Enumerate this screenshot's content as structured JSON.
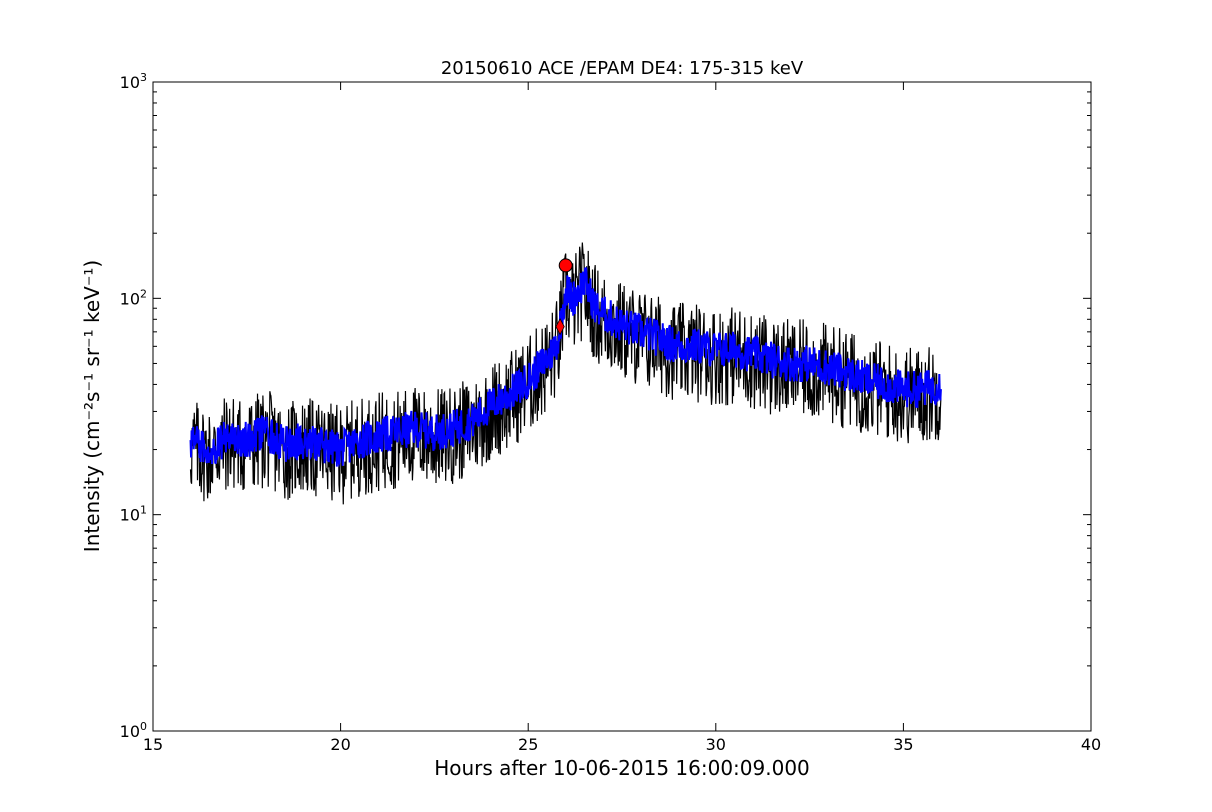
{
  "chart_data": {
    "type": "line",
    "title": "20150610 ACE /EPAM DE4: 175-315 keV",
    "xlabel": "Hours after 10-06-2015 16:00:09.000",
    "ylabel": "Intensity (cm⁻²s⁻¹ sr⁻¹ keV⁻¹)",
    "xlim": [
      15,
      40
    ],
    "ylim": [
      1,
      1000
    ],
    "yscale": "log",
    "grid": false,
    "x_ticks": [
      "15",
      "20",
      "25",
      "30",
      "35",
      "40"
    ],
    "y_ticks": [
      {
        "base": "10",
        "exp": "0"
      },
      {
        "base": "10",
        "exp": "1"
      },
      {
        "base": "10",
        "exp": "2"
      },
      {
        "base": "10",
        "exp": "3"
      }
    ],
    "series": [
      {
        "name": "",
        "role": "raw",
        "color": "#000000",
        "x": [
          16.0,
          16.5,
          17.0,
          17.5,
          18.0,
          18.5,
          19.0,
          19.5,
          20.0,
          20.5,
          21.0,
          21.5,
          22.0,
          22.5,
          23.0,
          23.5,
          24.0,
          24.5,
          25.0,
          25.3,
          25.6,
          25.8,
          26.0,
          26.2,
          26.5,
          26.8,
          27.0,
          27.5,
          28.0,
          28.5,
          29.0,
          29.5,
          30.0,
          30.5,
          31.0,
          31.5,
          32.0,
          32.5,
          33.0,
          33.5,
          34.0,
          34.5,
          35.0,
          35.5,
          36.0
        ],
        "y": [
          22,
          20,
          23,
          22,
          24,
          21,
          22,
          21,
          20,
          22,
          23,
          24,
          25,
          24,
          25,
          27,
          32,
          36,
          42,
          48,
          55,
          65,
          110,
          100,
          120,
          90,
          85,
          75,
          70,
          65,
          60,
          60,
          58,
          58,
          55,
          52,
          50,
          50,
          48,
          45,
          42,
          40,
          38,
          38,
          40
        ],
        "noise_low": 0.55,
        "noise_high": 1.6
      },
      {
        "name": "",
        "role": "smoothed",
        "color": "#0000ff",
        "x": [
          16.0,
          16.5,
          17.0,
          17.5,
          18.0,
          18.5,
          19.0,
          19.5,
          20.0,
          20.5,
          21.0,
          21.5,
          22.0,
          22.5,
          23.0,
          23.5,
          24.0,
          24.5,
          25.0,
          25.3,
          25.6,
          25.8,
          26.0,
          26.2,
          26.5,
          26.8,
          27.0,
          27.5,
          28.0,
          28.5,
          29.0,
          29.5,
          30.0,
          30.5,
          31.0,
          31.5,
          32.0,
          32.5,
          33.0,
          33.5,
          34.0,
          34.5,
          35.0,
          35.5,
          36.0
        ],
        "y": [
          22,
          20,
          23,
          22,
          24,
          21,
          22,
          21,
          20,
          22,
          23,
          24,
          25,
          24,
          25,
          27,
          32,
          36,
          42,
          48,
          55,
          65,
          110,
          100,
          120,
          90,
          85,
          75,
          70,
          65,
          60,
          60,
          58,
          58,
          55,
          52,
          50,
          50,
          48,
          45,
          42,
          40,
          38,
          38,
          40
        ],
        "noise_low": 0.82,
        "noise_high": 1.22
      }
    ],
    "markers": [
      {
        "shape": "diamond",
        "x": 25.85,
        "y": 74,
        "color": "#ff0000"
      },
      {
        "shape": "circle",
        "x": 26.0,
        "y": 142,
        "color": "#ff0000"
      }
    ]
  }
}
